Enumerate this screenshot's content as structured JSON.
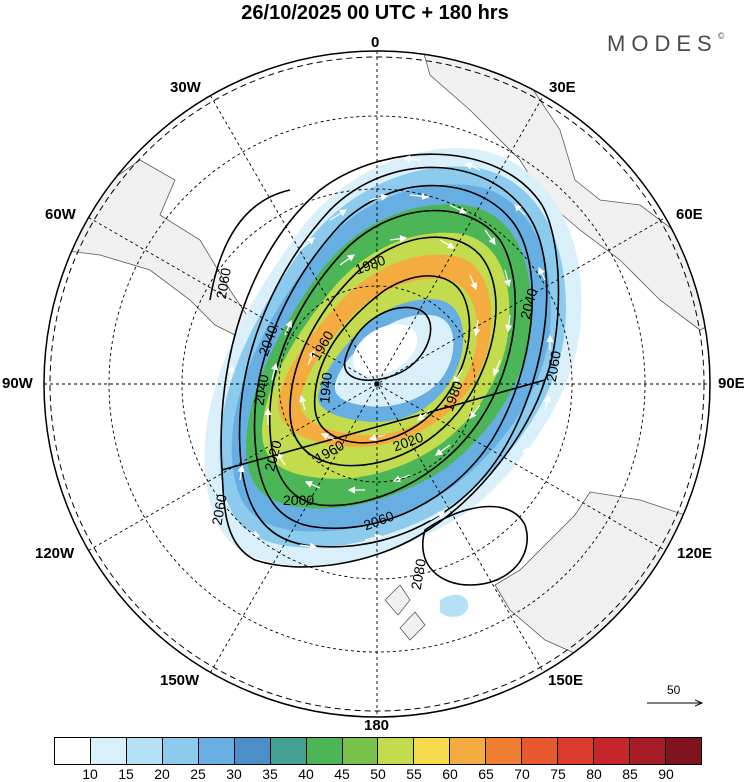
{
  "title": "26/10/2025  00 UTC  + 180 hrs",
  "brand": "MODES",
  "brand_mark": "©",
  "longitudes": {
    "lon_0": "0",
    "lon_30e": "30E",
    "lon_60e": "60E",
    "lon_90e": "90E",
    "lon_120e": "120E",
    "lon_150e": "150E",
    "lon_180": "180",
    "lon_150w": "150W",
    "lon_120w": "120W",
    "lon_90w": "90W",
    "lon_60w": "60W",
    "lon_30w": "30W"
  },
  "contour_labels": {
    "c1960a": "1960",
    "c1960b": "1960",
    "c1980a": "1980",
    "c1980b": "1980",
    "c2000": "2000",
    "c2020a": "2020",
    "c2020b": "2020",
    "c2040a": "2040",
    "c2040b": "2040",
    "c2040c": "2040",
    "c2060a": "2060",
    "c2060b": "2060",
    "c2060c": "2060",
    "c2060d": "2060",
    "c2080": "2080",
    "c1940": "1940"
  },
  "reference_vector": "50",
  "colorbar": {
    "ticks": [
      "10",
      "15",
      "20",
      "25",
      "30",
      "35",
      "40",
      "45",
      "50",
      "55",
      "60",
      "65",
      "70",
      "75",
      "80",
      "85",
      "90"
    ],
    "colors": [
      "#ffffff",
      "#d9f0fb",
      "#b4e1f5",
      "#8ccbee",
      "#67aee2",
      "#4a8fc8",
      "#43a093",
      "#4cb657",
      "#79c24a",
      "#c3dc4d",
      "#f5db4c",
      "#f4ab40",
      "#f07e32",
      "#e85930",
      "#dc3a2c",
      "#c4262b",
      "#a51c27",
      "#7f1420"
    ]
  }
}
